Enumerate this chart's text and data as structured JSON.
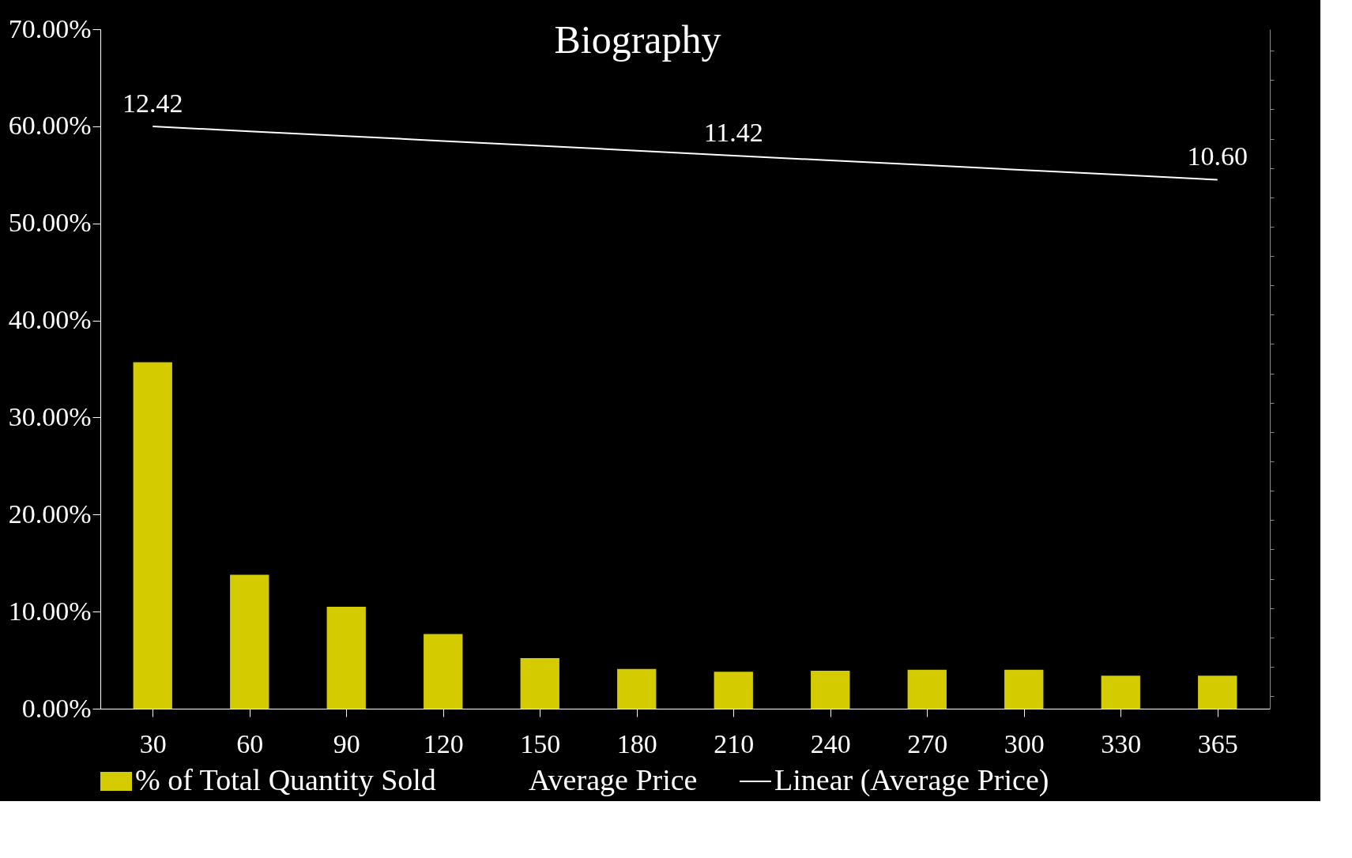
{
  "chart_data": {
    "type": "bar",
    "title": "Biography",
    "categories": [
      "30",
      "60",
      "90",
      "120",
      "150",
      "180",
      "210",
      "240",
      "270",
      "300",
      "330",
      "365"
    ],
    "series": [
      {
        "name": "% of Total Quantity Sold",
        "color": "#d4cc00",
        "values": [
          35.7,
          13.8,
          10.5,
          7.7,
          5.2,
          4.1,
          3.8,
          3.9,
          4.0,
          4.0,
          3.4,
          3.4
        ]
      },
      {
        "name": "Average Price",
        "type": "line",
        "axis": "y2",
        "values": [
          null,
          null,
          null,
          null,
          null,
          null,
          null,
          null,
          null,
          null,
          null,
          null
        ]
      },
      {
        "name": "Linear (Average Price)",
        "type": "line",
        "axis": "y2",
        "color": "#ffffff",
        "values": [
          12.42,
          12.25,
          12.09,
          11.92,
          11.76,
          11.59,
          11.42,
          11.26,
          11.1,
          10.93,
          10.77,
          10.6
        ],
        "value_labels": [
          "12.42",
          null,
          null,
          null,
          null,
          null,
          "11.42",
          null,
          null,
          null,
          null,
          "10.60"
        ]
      }
    ],
    "ylim": [
      0,
      70
    ],
    "yticks": [
      {
        "value": 0,
        "label": "0.00%"
      },
      {
        "value": 10,
        "label": "10.00%"
      },
      {
        "value": 20,
        "label": "20.00%"
      },
      {
        "value": 30,
        "label": "30.00%"
      },
      {
        "value": 40,
        "label": "40.00%"
      },
      {
        "value": 50,
        "label": "50.00%"
      },
      {
        "value": 60,
        "label": "60.00%"
      },
      {
        "value": 70,
        "label": "70.00%"
      }
    ],
    "y2lim": [
      -7.43,
      15.73
    ],
    "tick_labels": "xy",
    "grid": false,
    "legend": "bottom"
  }
}
